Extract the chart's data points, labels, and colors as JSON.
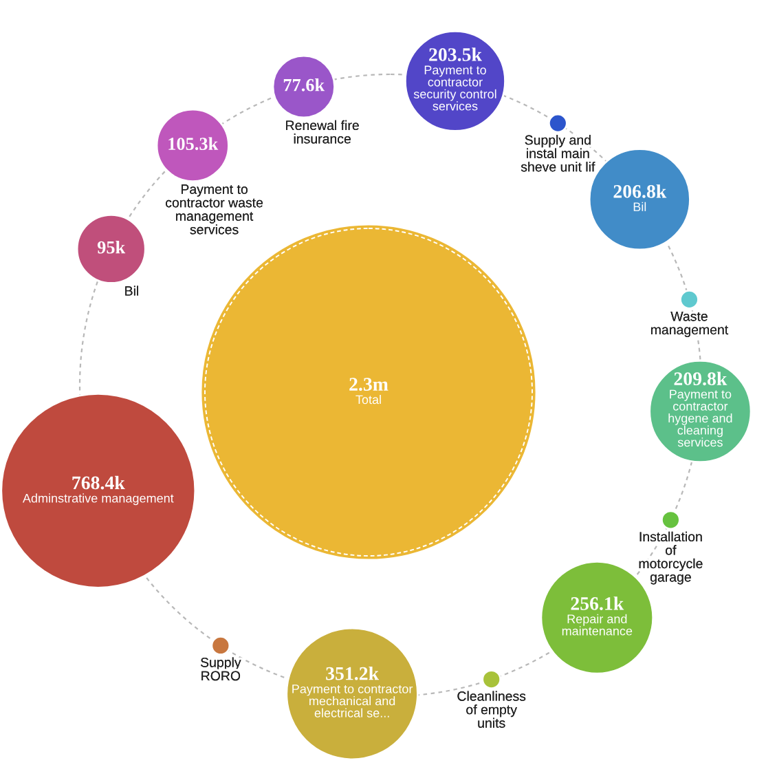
{
  "chart_data": {
    "type": "other",
    "categories": [
      "Total",
      "Payment to\ncontractor\nsecurity control\nservices",
      "Supply and\ninstal main\nsheve unit lif",
      "Bil",
      "Waste\nmanagement",
      "Payment to\ncontractor\nhygene and\ncleaning\nservices",
      "Installation\nof\nmotorcycle\ngarage",
      "Repair and\nmaintenance",
      "Cleanliness\nof empty\nunits",
      "Payment to contractor\nmechanical and\nelectrical se...",
      "Supply\nRORO",
      "Adminstrative management",
      "Bil",
      "Payment to\ncontractor waste\nmanagement\nservices",
      "Renewal fire\ninsurance"
    ],
    "values": [
      2300000,
      203500,
      null,
      206800,
      null,
      209800,
      null,
      256100,
      null,
      351200,
      null,
      768400,
      95000,
      105300,
      77600
    ],
    "value_labels": [
      "2.3m",
      "203.5k",
      null,
      "206.8k",
      null,
      "209.8k",
      null,
      "256.1k",
      null,
      "351.2k",
      null,
      "768.4k",
      "95k",
      "105.3k",
      "77.6k"
    ],
    "colors": [
      "#ebb734",
      "#5246c8",
      "#2c55cc",
      "#418cc8",
      "#5fc9cf",
      "#5cc08a",
      "#66c23f",
      "#7dbe3a",
      "#a8c23a",
      "#c9af3c",
      "#c8773f",
      "#bf4a3e",
      "#c04f7b",
      "#bf57bc",
      "#9a56c9"
    ]
  }
}
